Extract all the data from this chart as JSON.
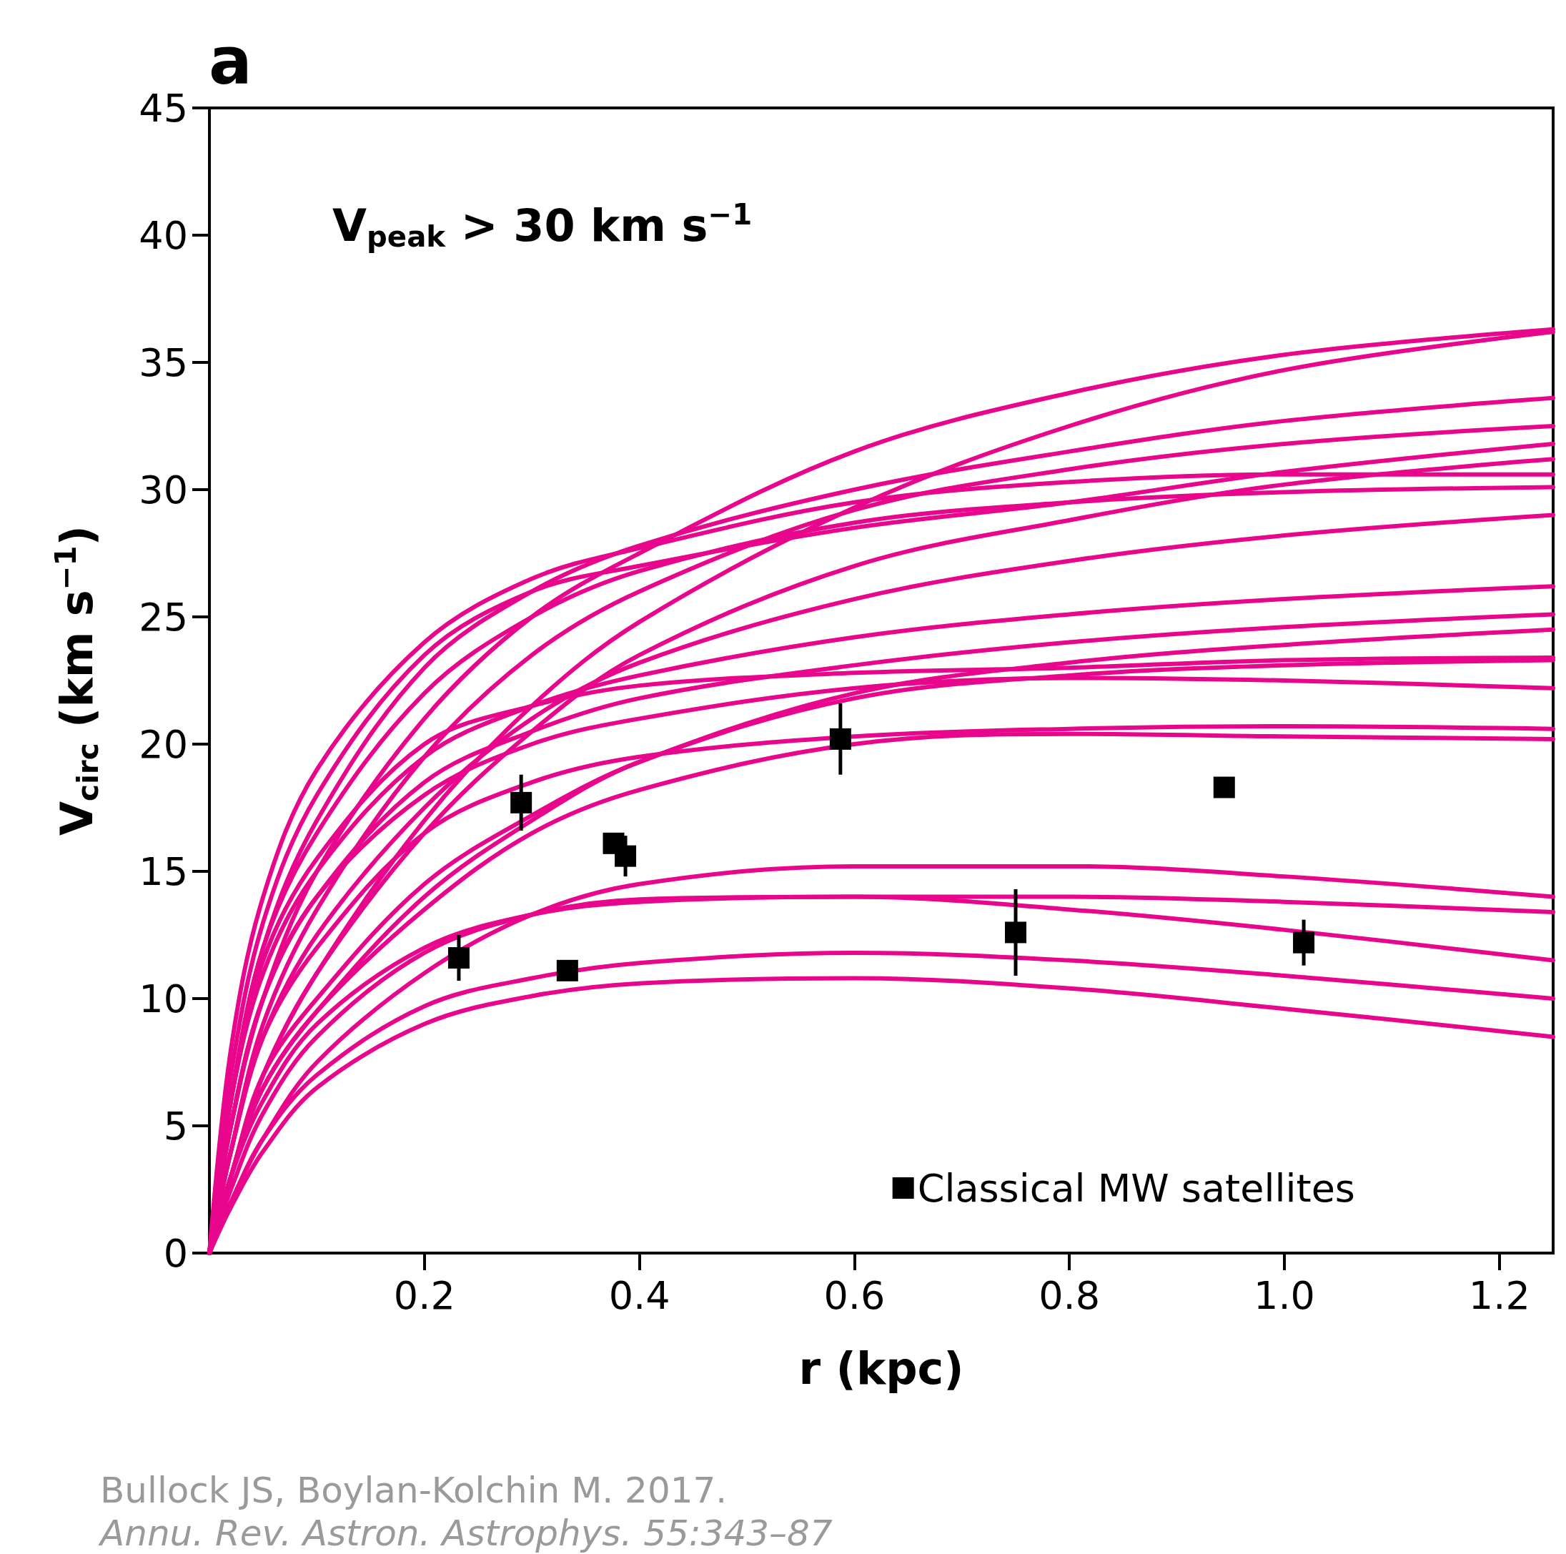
{
  "chart_data": {
    "type": "line",
    "xlabel": "r (kpc)",
    "ylabel": "V$_{circ}$ (km s$^{−1}$)",
    "annotations": [
      "a",
      "V$_{peak}$ > 30 km s$^{−1}$",
      "Bullock JS, Boylan-Kolchin M. 2017.",
      "Annu. Rev. Astron. Astrophys. 55:343–87"
    ],
    "xlim": [
      0,
      1.25
    ],
    "xticks": [
      0.2,
      0.4,
      0.6,
      0.8,
      {
        "value": 1.0,
        "label": "1.0"
      },
      1.2
    ],
    "ylim": [
      0,
      45
    ],
    "yticks": [
      0,
      5,
      10,
      15,
      20,
      25,
      30,
      35,
      40,
      45
    ],
    "grid": false,
    "legend": "bottom right",
    "marker": "none",
    "line_style": "solid",
    "x": [
      0,
      0.02,
      0.05,
      0.1,
      0.2,
      0.3,
      0.4,
      0.6,
      0.8,
      1.0,
      1.25
    ],
    "series": [
      {
        "color": "#e8068c",
        "values": [
          0,
          5,
          10,
          15,
          21,
          25,
          27.5,
          31.5,
          33.8,
          35.3,
          36.3
        ]
      },
      {
        "color": "#e8068c",
        "values": [
          0,
          3,
          7,
          11,
          17,
          21.5,
          24.8,
          29.3,
          32.5,
          34.7,
          36.2
        ]
      },
      {
        "color": "#e8068c",
        "values": [
          0,
          6,
          12,
          17,
          23,
          26,
          27.8,
          30,
          31.5,
          32.7,
          33.6
        ]
      },
      {
        "color": "#e8068c",
        "values": [
          0,
          4,
          9,
          13.5,
          19.5,
          23.5,
          26,
          29.2,
          30.8,
          31.8,
          32.5
        ]
      },
      {
        "color": "#e8068c",
        "values": [
          0,
          7,
          13,
          18,
          23.5,
          26,
          27,
          28.5,
          29.5,
          30.7,
          31.8
        ]
      },
      {
        "color": "#e8068c",
        "values": [
          0,
          3,
          7,
          11,
          16.5,
          20.5,
          23.5,
          27,
          28.8,
          30.2,
          31.2
        ]
      },
      {
        "color": "#e8068c",
        "values": [
          0,
          8,
          14,
          19,
          24,
          26.5,
          27.7,
          29.5,
          30.3,
          30.6,
          30.6
        ]
      },
      {
        "color": "#e8068c",
        "values": [
          0,
          6,
          12,
          16.5,
          22,
          25,
          26.8,
          28.7,
          29.5,
          29.9,
          30.1
        ]
      },
      {
        "color": "#e8068c",
        "values": [
          0,
          4,
          8.5,
          12.5,
          17.5,
          21,
          23.2,
          25.7,
          27.2,
          28.2,
          29.0
        ]
      },
      {
        "color": "#e8068c",
        "values": [
          0,
          6,
          11,
          15,
          19.5,
          21.5,
          22.7,
          24.2,
          25.1,
          25.7,
          26.2
        ]
      },
      {
        "color": "#e8068c",
        "values": [
          0,
          5,
          10,
          14,
          18.5,
          20.5,
          21.8,
          23.1,
          24,
          24.6,
          25.1
        ]
      },
      {
        "color": "#e8068c",
        "values": [
          0,
          3,
          7,
          10,
          14.5,
          17.2,
          19.3,
          22,
          23.2,
          23.9,
          24.5
        ]
      },
      {
        "color": "#e8068c",
        "values": [
          0,
          6,
          11.5,
          15.5,
          20,
          21.5,
          22.3,
          22.8,
          23,
          23.3,
          23.4
        ]
      },
      {
        "color": "#e8068c",
        "values": [
          0,
          3,
          6.5,
          9.5,
          14,
          17,
          19.3,
          21.8,
          22.7,
          23.1,
          23.3
        ]
      },
      {
        "color": "#e8068c",
        "values": [
          0,
          5,
          10,
          14,
          18,
          20,
          21,
          22.2,
          22.6,
          22.5,
          22.2
        ]
      },
      {
        "color": "#e8068c",
        "values": [
          0,
          4,
          8.5,
          12,
          16.5,
          18.5,
          19.5,
          20.3,
          20.6,
          20.7,
          20.6
        ]
      },
      {
        "color": "#e8068c",
        "values": [
          0,
          3,
          6.5,
          9.5,
          13.5,
          16.5,
          18.2,
          20,
          20.4,
          20.3,
          20.2
        ]
      },
      {
        "color": "#e8068c",
        "values": [
          0,
          2,
          4.5,
          7.5,
          11,
          13.3,
          14.5,
          15.2,
          15.2,
          14.8,
          14.0
        ]
      },
      {
        "color": "#e8068c",
        "values": [
          0,
          2.5,
          5.5,
          8.5,
          11.8,
          13.3,
          13.9,
          14.0,
          14.0,
          13.8,
          13.4
        ]
      },
      {
        "color": "#e8068c",
        "values": [
          0,
          3,
          6,
          9,
          12,
          13.3,
          13.8,
          14,
          13.5,
          12.7,
          11.5
        ]
      },
      {
        "color": "#e8068c",
        "values": [
          0,
          2,
          4.5,
          7,
          9.7,
          10.8,
          11.4,
          11.8,
          11.5,
          10.9,
          10.0
        ]
      },
      {
        "color": "#e8068c",
        "values": [
          0,
          1.8,
          4,
          6.5,
          9,
          10.1,
          10.6,
          10.8,
          10.4,
          9.6,
          8.5
        ]
      },
      {
        "type": "scatter",
        "name": "Classical MW satellites",
        "color": "#000000",
        "marker": "square",
        "x": [
          0.232,
          0.29,
          0.333,
          0.376,
          0.387,
          0.587,
          0.75,
          0.944,
          1.018
        ],
        "values": [
          11.6,
          17.7,
          11.1,
          16.1,
          15.6,
          20.2,
          12.6,
          18.3,
          12.2
        ],
        "errors": [
          0.9,
          1.1,
          0.3,
          0.4,
          0.8,
          1.4,
          1.7,
          0.2,
          0.9
        ]
      }
    ]
  }
}
